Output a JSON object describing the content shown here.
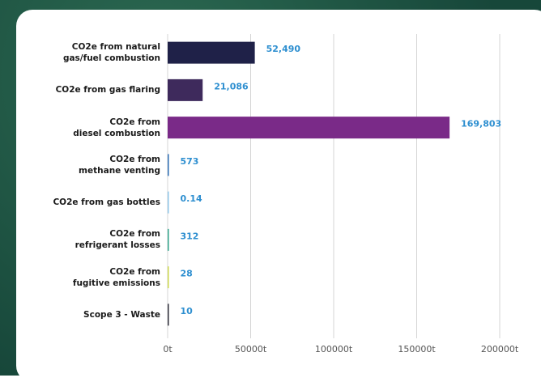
{
  "chart_data": {
    "type": "bar",
    "orientation": "horizontal",
    "categories": [
      "CO2e from natural\ngas/fuel combustion",
      "CO2e from gas flaring",
      "CO2e from\ndiesel combustion",
      "CO2e from\nmethane venting",
      "CO2e from gas bottles",
      "CO2e from\nrefrigerant losses",
      "CO2e from\nfugitive emissions",
      "Scope 3 - Waste"
    ],
    "values": [
      52490,
      21086,
      169803,
      573,
      0.14,
      312,
      28,
      10
    ],
    "value_labels": [
      "52,490",
      "21,086",
      "169,803",
      "573",
      "0.14",
      "312",
      "28",
      "10"
    ],
    "colors": [
      "#1f2148",
      "#3e2a5c",
      "#7a2a88",
      "#2b6cb3",
      "#8fc6e8",
      "#2fa38a",
      "#cdd84c",
      "#2e2e3a"
    ],
    "xlim": [
      0,
      200000
    ],
    "xticks": [
      {
        "value": 0,
        "label": "0t"
      },
      {
        "value": 50000,
        "label": "50000t"
      },
      {
        "value": 100000,
        "label": "100000t"
      },
      {
        "value": 150000,
        "label": "150000t"
      },
      {
        "value": 200000,
        "label": "200000t"
      }
    ],
    "grid": true
  }
}
